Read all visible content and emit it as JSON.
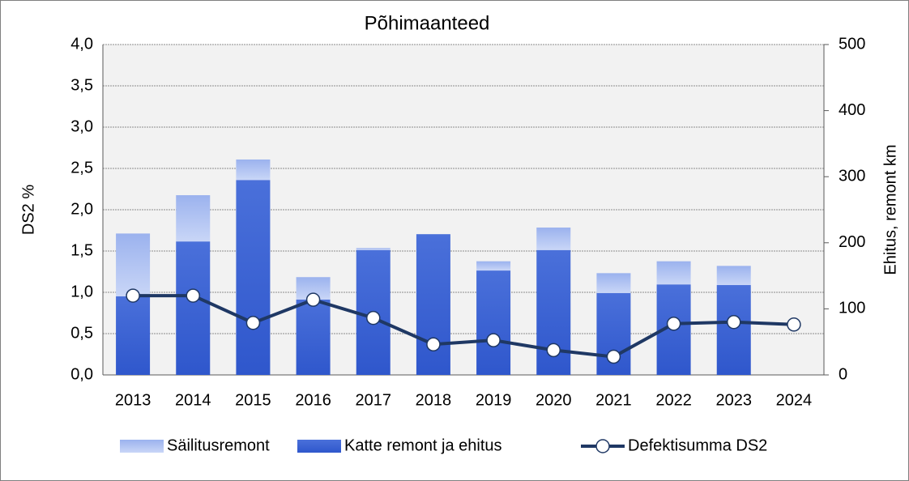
{
  "chart_data": {
    "type": "bar_line",
    "title": "Põhimaanteed",
    "ylabel": "DS2  %",
    "y2label": "Ehitus, remont km",
    "categories": [
      "2013",
      "2014",
      "2015",
      "2016",
      "2017",
      "2018",
      "2019",
      "2020",
      "2021",
      "2022",
      "2023",
      "2024"
    ],
    "series": [
      {
        "name": "Säilitusremont",
        "type": "bar",
        "axis": "y2",
        "color": "#a9bdf0",
        "values": [
          95,
          70,
          31,
          34,
          3,
          0,
          14,
          34,
          30,
          35,
          29,
          null
        ]
      },
      {
        "name": "Katte remont ja ehitus",
        "type": "bar",
        "axis": "y2",
        "color": "#3b63d3",
        "values": [
          119,
          202,
          295,
          114,
          189,
          213,
          158,
          189,
          124,
          137,
          136,
          null
        ]
      },
      {
        "name": "Defektisumma DS2",
        "type": "line",
        "axis": "y",
        "color": "#1f3864",
        "values": [
          0.96,
          0.96,
          0.63,
          0.91,
          0.69,
          0.37,
          0.42,
          0.3,
          0.22,
          0.62,
          0.64,
          0.61
        ]
      }
    ],
    "ylim": [
      0,
      4
    ],
    "yticks": [
      {
        "value": 0,
        "label": "0,0"
      },
      {
        "value": 0.5,
        "label": "0,5"
      },
      {
        "value": 1,
        "label": "1,0"
      },
      {
        "value": 1.5,
        "label": "1,5"
      },
      {
        "value": 2,
        "label": "2,0"
      },
      {
        "value": 2.5,
        "label": "2,5"
      },
      {
        "value": 3,
        "label": "3,0"
      },
      {
        "value": 3.5,
        "label": "3,5"
      },
      {
        "value": 4,
        "label": "4,0"
      }
    ],
    "y2lim": [
      0,
      500
    ],
    "y2ticks": [
      0,
      100,
      200,
      300,
      400,
      500
    ],
    "grid": true,
    "legend": "bottom"
  }
}
